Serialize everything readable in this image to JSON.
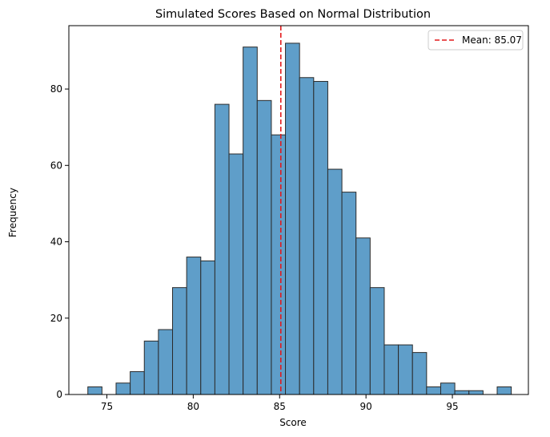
{
  "chart_data": {
    "type": "bar",
    "subtype": "histogram",
    "title": "Simulated Scores Based on Normal Distribution",
    "xlabel": "Score",
    "ylabel": "Frequency",
    "xlim": [
      72.8,
      99.4
    ],
    "ylim": [
      0,
      96.6
    ],
    "xticks": [
      75,
      80,
      85,
      90,
      95
    ],
    "yticks": [
      0,
      20,
      40,
      60,
      80
    ],
    "bin_start": 73.9,
    "bin_width": 0.817,
    "counts": [
      2,
      0,
      3,
      6,
      14,
      17,
      28,
      36,
      35,
      76,
      63,
      91,
      77,
      68,
      92,
      83,
      82,
      59,
      53,
      41,
      28,
      13,
      13,
      11,
      2,
      3,
      1,
      1,
      0,
      2
    ],
    "bar_color": "#5f9ec9",
    "bar_edge_color": "#2b2b2b",
    "mean_line": {
      "value": 85.07,
      "label": "Mean: 85.07",
      "color": "#e31a1c",
      "style": "dashed"
    },
    "legend_position": "top-right",
    "grid": false
  }
}
